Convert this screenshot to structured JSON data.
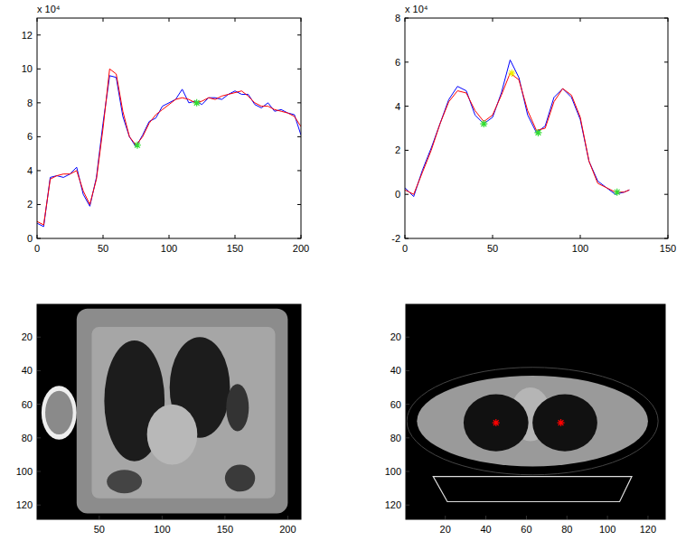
{
  "chart_data": [
    {
      "type": "line",
      "xlim": [
        0,
        200
      ],
      "xticks": [
        0,
        50,
        100,
        150,
        200
      ],
      "ylim": [
        0,
        13
      ],
      "yticks": [
        0,
        2,
        4,
        6,
        8,
        10,
        12
      ],
      "y_multiplier": "x 10⁴",
      "series": [
        {
          "color": "#0000ff",
          "x": [
            0,
            5,
            10,
            15,
            20,
            25,
            30,
            35,
            40,
            45,
            50,
            55,
            60,
            65,
            70,
            75,
            80,
            85,
            90,
            95,
            100,
            105,
            110,
            115,
            120,
            125,
            130,
            135,
            140,
            145,
            150,
            155,
            160,
            165,
            170,
            175,
            180,
            185,
            190,
            195,
            200
          ],
          "values": [
            0.9,
            0.7,
            3.6,
            3.7,
            3.6,
            3.8,
            4.2,
            2.6,
            1.9,
            3.6,
            6.8,
            9.6,
            9.5,
            7.2,
            6.0,
            5.4,
            6.1,
            6.9,
            7.1,
            7.8,
            8.0,
            8.2,
            8.8,
            8.0,
            8.1,
            7.9,
            8.3,
            8.3,
            8.2,
            8.5,
            8.7,
            8.5,
            8.5,
            7.9,
            7.7,
            8.0,
            7.5,
            7.6,
            7.4,
            7.3,
            6.1
          ]
        },
        {
          "color": "#ff0000",
          "x": [
            0,
            5,
            10,
            15,
            20,
            25,
            30,
            35,
            40,
            45,
            50,
            55,
            60,
            65,
            70,
            75,
            80,
            85,
            90,
            95,
            100,
            105,
            110,
            115,
            120,
            125,
            130,
            135,
            140,
            145,
            150,
            155,
            160,
            165,
            170,
            175,
            180,
            185,
            190,
            195,
            200
          ],
          "values": [
            1.0,
            0.8,
            3.5,
            3.7,
            3.8,
            3.8,
            4.0,
            2.8,
            2.0,
            3.5,
            6.5,
            10.0,
            9.7,
            7.5,
            6.0,
            5.5,
            6.0,
            6.8,
            7.3,
            7.6,
            7.9,
            8.2,
            8.3,
            8.2,
            8.0,
            8.1,
            8.3,
            8.2,
            8.4,
            8.5,
            8.6,
            8.7,
            8.4,
            8.0,
            7.8,
            7.8,
            7.6,
            7.5,
            7.4,
            7.2,
            6.6
          ]
        },
        {
          "type": "scatter",
          "marker": "star",
          "color": "#33dd33",
          "x": [
            76,
            121
          ],
          "values": [
            5.5,
            8.0
          ]
        }
      ]
    },
    {
      "type": "line",
      "xlim": [
        0,
        150
      ],
      "xticks": [
        0,
        50,
        100,
        150
      ],
      "ylim": [
        -2,
        8
      ],
      "yticks": [
        -2,
        0,
        2,
        4,
        6,
        8
      ],
      "y_multiplier": "x 10⁴",
      "series": [
        {
          "color": "#0000ff",
          "x": [
            0,
            5,
            10,
            15,
            20,
            25,
            30,
            35,
            40,
            45,
            50,
            55,
            60,
            65,
            70,
            75,
            80,
            85,
            90,
            95,
            100,
            105,
            110,
            115,
            120,
            125,
            128
          ],
          "values": [
            0.3,
            -0.1,
            1.1,
            2.1,
            3.2,
            4.3,
            4.9,
            4.7,
            3.6,
            3.2,
            3.5,
            4.6,
            6.1,
            5.3,
            3.6,
            2.8,
            3.1,
            4.4,
            4.8,
            4.4,
            3.4,
            1.5,
            0.6,
            0.3,
            0.0,
            0.1,
            0.2
          ]
        },
        {
          "color": "#ff0000",
          "x": [
            0,
            5,
            10,
            15,
            20,
            25,
            30,
            35,
            40,
            45,
            50,
            55,
            60,
            65,
            70,
            75,
            80,
            85,
            90,
            95,
            100,
            105,
            110,
            115,
            120,
            125,
            128
          ],
          "values": [
            0.2,
            0.0,
            1.0,
            2.0,
            3.2,
            4.2,
            4.7,
            4.6,
            3.8,
            3.3,
            3.6,
            4.5,
            5.5,
            5.2,
            3.8,
            2.9,
            3.0,
            4.2,
            4.8,
            4.5,
            3.5,
            1.5,
            0.5,
            0.3,
            0.1,
            0.1,
            0.2
          ]
        },
        {
          "type": "scatter",
          "marker": "star",
          "color": "#33dd33",
          "x": [
            45,
            76,
            121
          ],
          "values": [
            3.2,
            2.8,
            0.1
          ]
        },
        {
          "type": "scatter",
          "marker": "star",
          "color": "#eeee00",
          "x": [
            61
          ],
          "values": [
            5.5
          ]
        }
      ]
    },
    {
      "type": "image",
      "xlim": [
        0.5,
        210.5
      ],
      "xticks": [
        50,
        100,
        150,
        200
      ],
      "ylim": [
        0.5,
        128.5
      ],
      "yticks": [
        20,
        40,
        60,
        80,
        100,
        120
      ]
    },
    {
      "type": "image",
      "xlim": [
        0.5,
        128.5
      ],
      "xticks": [
        20,
        40,
        60,
        80,
        100,
        120
      ],
      "ylim": [
        0.5,
        128.5
      ],
      "yticks": [
        20,
        40,
        60,
        80,
        100,
        120
      ],
      "series": [
        {
          "type": "scatter",
          "marker": "star",
          "color": "#ff0000",
          "x": [
            45,
            77
          ],
          "values": [
            71,
            71
          ]
        }
      ]
    }
  ]
}
